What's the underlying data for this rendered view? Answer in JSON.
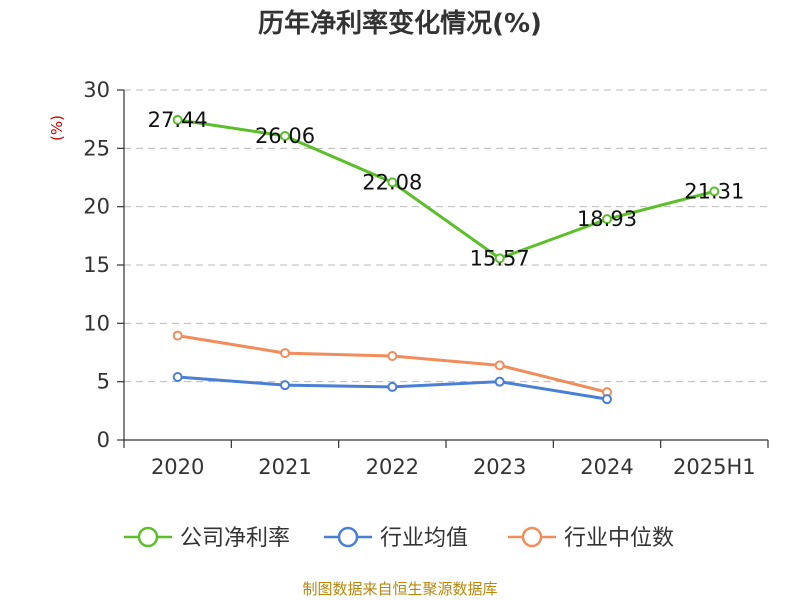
{
  "chart_data": {
    "type": "line",
    "title": "历年净利率变化情况(%)",
    "unit_label": "(%)",
    "categories": [
      "2020",
      "2021",
      "2022",
      "2023",
      "2024",
      "2025H1"
    ],
    "ylim": [
      0,
      30
    ],
    "yticks": [
      "0",
      "5",
      "10",
      "15",
      "20",
      "25",
      "30"
    ],
    "grid": true,
    "legend_position": "bottom",
    "series": [
      {
        "name": "公司净利率",
        "color": "#5cbf2a",
        "values": [
          27.44,
          26.06,
          22.08,
          15.57,
          18.93,
          21.31
        ],
        "labels": [
          "27.44",
          "26.06",
          "22.08",
          "15.57",
          "18.93",
          "21.31"
        ]
      },
      {
        "name": "行业均值",
        "color": "#4a7fd6",
        "values": [
          5.4,
          4.7,
          4.55,
          5.0,
          3.5,
          null
        ]
      },
      {
        "name": "行业中位数",
        "color": "#f28c5a",
        "values": [
          8.95,
          7.45,
          7.2,
          6.4,
          4.1,
          null
        ]
      }
    ],
    "source": "制图数据来自恒生聚源数据库"
  }
}
